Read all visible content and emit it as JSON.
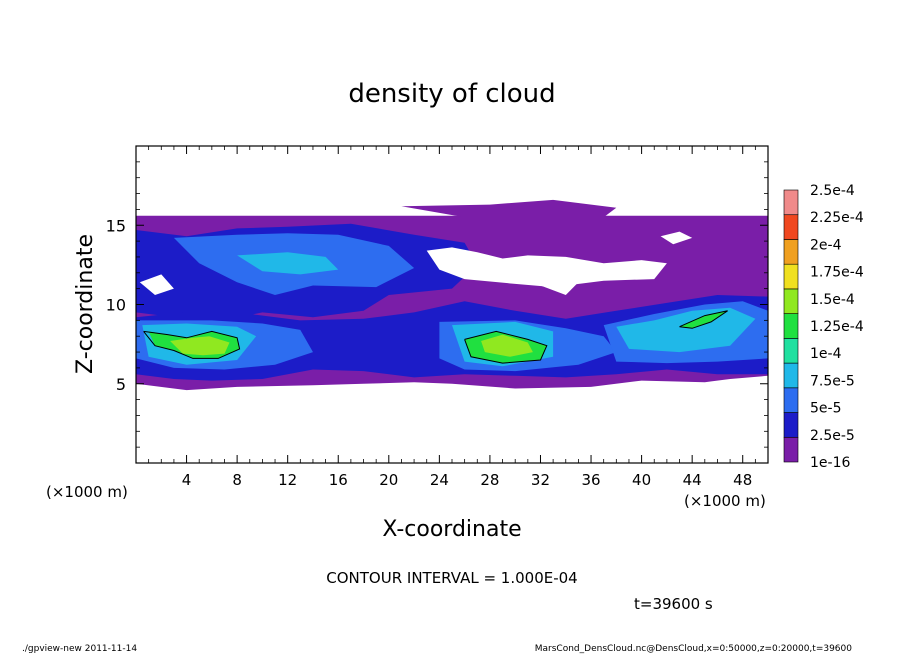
{
  "chart_data": {
    "type": "heatmap",
    "title": "density of cloud",
    "xlabel": "X-coordinate",
    "ylabel": "Z-coordinate",
    "x_unit_label": "(×1000 m)",
    "y_unit_label": "(×1000 m)",
    "xlim": [
      0,
      50
    ],
    "ylim": [
      0,
      20
    ],
    "x_ticks": [
      4,
      8,
      12,
      16,
      20,
      24,
      28,
      32,
      36,
      40,
      44,
      48
    ],
    "y_ticks": [
      5,
      10,
      15
    ],
    "colorbar": {
      "levels": [
        "1e-16",
        "2.5e-5",
        "5e-5",
        "7.5e-5",
        "1e-4",
        "1.25e-4",
        "1.5e-4",
        "1.75e-4",
        "2e-4",
        "2.25e-4",
        "2.5e-4"
      ],
      "colors": [
        "#7a1ea8",
        "#1c1cc8",
        "#2d6df0",
        "#20b8e8",
        "#20e0a0",
        "#20e040",
        "#90e820",
        "#f0e020",
        "#f0a020",
        "#f04820",
        "#f08a8a"
      ]
    },
    "contour_interval_text": "CONTOUR INTERVAL = 1.000E-04",
    "time_label": "t=39600 s",
    "grid": false,
    "regions": [
      {
        "level": 0,
        "poly": [
          [
            0,
            15.6
          ],
          [
            50,
            15.6
          ],
          [
            50,
            5.5
          ],
          [
            47,
            5.3
          ],
          [
            45,
            5.1
          ],
          [
            40,
            5.2
          ],
          [
            36,
            4.8
          ],
          [
            30,
            4.7
          ],
          [
            25,
            5.0
          ],
          [
            22,
            5.1
          ],
          [
            18,
            5.0
          ],
          [
            14,
            4.9
          ],
          [
            8,
            4.8
          ],
          [
            4,
            4.6
          ],
          [
            0,
            5.0
          ]
        ]
      },
      {
        "level": 0,
        "poly": [
          [
            21,
            16.2
          ],
          [
            28,
            16.3
          ],
          [
            33,
            16.6
          ],
          [
            38,
            16.1
          ],
          [
            37,
            15.5
          ],
          [
            26,
            15.5
          ]
        ]
      },
      {
        "level": 1,
        "poly": [
          [
            0,
            14.7
          ],
          [
            4,
            14.3
          ],
          [
            8,
            14.8
          ],
          [
            12,
            14.9
          ],
          [
            17,
            15.1
          ],
          [
            22,
            14.4
          ],
          [
            26,
            13.9
          ],
          [
            27,
            12.5
          ],
          [
            25,
            11.0
          ],
          [
            20,
            10.6
          ],
          [
            18,
            9.6
          ],
          [
            14,
            9.2
          ],
          [
            10,
            9.5
          ],
          [
            7,
            9.0
          ],
          [
            4,
            9.1
          ],
          [
            0,
            9.5
          ]
        ]
      },
      {
        "level": 1,
        "poly": [
          [
            0,
            9.2
          ],
          [
            5,
            9.6
          ],
          [
            9,
            9.4
          ],
          [
            13,
            9.0
          ],
          [
            18,
            9.1
          ],
          [
            22,
            9.5
          ],
          [
            26,
            10.2
          ],
          [
            30,
            9.6
          ],
          [
            34,
            9.1
          ],
          [
            38,
            9.6
          ],
          [
            42,
            10.1
          ],
          [
            46,
            10.6
          ],
          [
            50,
            10.5
          ],
          [
            50,
            5.6
          ],
          [
            46,
            5.6
          ],
          [
            42,
            5.9
          ],
          [
            38,
            5.6
          ],
          [
            34,
            5.4
          ],
          [
            30,
            5.5
          ],
          [
            26,
            5.6
          ],
          [
            22,
            5.4
          ],
          [
            18,
            5.8
          ],
          [
            14,
            5.9
          ],
          [
            10,
            5.3
          ],
          [
            6,
            5.2
          ],
          [
            3,
            5.3
          ],
          [
            0,
            5.6
          ]
        ]
      },
      {
        "level": 2,
        "poly": [
          [
            3,
            14.2
          ],
          [
            8,
            14.4
          ],
          [
            12,
            14.5
          ],
          [
            16,
            14.4
          ],
          [
            20,
            13.7
          ],
          [
            22,
            12.3
          ],
          [
            19,
            11.1
          ],
          [
            14,
            11.2
          ],
          [
            11,
            10.6
          ],
          [
            8,
            11.4
          ],
          [
            5,
            12.6
          ]
        ]
      },
      {
        "level": 2,
        "poly": [
          [
            0,
            9.0
          ],
          [
            6,
            9.0
          ],
          [
            10,
            8.8
          ],
          [
            13,
            8.4
          ],
          [
            14,
            7.0
          ],
          [
            11,
            6.2
          ],
          [
            7,
            5.9
          ],
          [
            3,
            6.0
          ],
          [
            0,
            6.6
          ]
        ]
      },
      {
        "level": 2,
        "poly": [
          [
            24,
            8.9
          ],
          [
            30,
            9.0
          ],
          [
            34,
            8.5
          ],
          [
            37,
            8.0
          ],
          [
            38,
            7.0
          ],
          [
            35,
            6.2
          ],
          [
            30,
            5.8
          ],
          [
            26,
            5.9
          ],
          [
            24,
            6.6
          ]
        ]
      },
      {
        "level": 2,
        "poly": [
          [
            37,
            8.7
          ],
          [
            41,
            9.4
          ],
          [
            45,
            10.0
          ],
          [
            48,
            10.2
          ],
          [
            50,
            9.6
          ],
          [
            50,
            6.6
          ],
          [
            46,
            6.4
          ],
          [
            42,
            6.3
          ],
          [
            38,
            6.4
          ]
        ]
      },
      {
        "level": 3,
        "poly": [
          [
            8,
            13.1
          ],
          [
            12,
            13.3
          ],
          [
            15,
            13.0
          ],
          [
            16,
            12.2
          ],
          [
            13,
            11.9
          ],
          [
            10,
            12.1
          ]
        ]
      },
      {
        "level": 3,
        "poly": [
          [
            0.5,
            8.7
          ],
          [
            4,
            8.8
          ],
          [
            8,
            8.6
          ],
          [
            9.5,
            8.0
          ],
          [
            8,
            6.5
          ],
          [
            4,
            6.2
          ],
          [
            1,
            6.7
          ]
        ]
      },
      {
        "level": 3,
        "poly": [
          [
            25,
            8.7
          ],
          [
            30,
            8.9
          ],
          [
            33,
            8.3
          ],
          [
            33,
            6.7
          ],
          [
            29,
            6.1
          ],
          [
            26,
            6.4
          ]
        ]
      },
      {
        "level": 3,
        "poly": [
          [
            38,
            8.6
          ],
          [
            41,
            9.0
          ],
          [
            44,
            9.6
          ],
          [
            47,
            9.8
          ],
          [
            49,
            9.1
          ],
          [
            47,
            7.4
          ],
          [
            43,
            7.0
          ],
          [
            39,
            7.2
          ]
        ]
      },
      {
        "level": 5,
        "poly": [
          [
            1,
            8.3
          ],
          [
            2.5,
            8.1
          ],
          [
            4,
            7.9
          ],
          [
            6,
            8.3
          ],
          [
            8,
            7.9
          ],
          [
            8.2,
            7.2
          ],
          [
            6.5,
            6.6
          ],
          [
            4.5,
            6.6
          ],
          [
            3,
            7.1
          ],
          [
            1.5,
            7.4
          ]
        ]
      },
      {
        "level": 6,
        "poly": [
          [
            2.7,
            7.7
          ],
          [
            4.5,
            7.9
          ],
          [
            5.8,
            8.0
          ],
          [
            7.4,
            7.6
          ],
          [
            7.0,
            6.9
          ],
          [
            5.3,
            6.8
          ],
          [
            3.7,
            6.9
          ]
        ]
      },
      {
        "level": 5,
        "poly": [
          [
            26,
            7.8
          ],
          [
            28.5,
            8.3
          ],
          [
            31,
            7.8
          ],
          [
            32.5,
            7.4
          ],
          [
            32,
            6.5
          ],
          [
            29,
            6.3
          ],
          [
            26.5,
            6.7
          ]
        ]
      },
      {
        "level": 6,
        "poly": [
          [
            27.3,
            7.7
          ],
          [
            29,
            8.1
          ],
          [
            31,
            7.6
          ],
          [
            31.4,
            7.0
          ],
          [
            29.6,
            6.7
          ],
          [
            27.6,
            7.0
          ]
        ]
      },
      {
        "level": 5,
        "poly": [
          [
            43,
            8.6
          ],
          [
            45,
            9.3
          ],
          [
            46.8,
            9.6
          ],
          [
            45.5,
            8.9
          ],
          [
            44,
            8.5
          ]
        ]
      }
    ],
    "holes": [
      {
        "poly": [
          [
            23,
            13.4
          ],
          [
            25,
            13.6
          ],
          [
            27,
            13.3
          ],
          [
            29,
            12.9
          ],
          [
            31,
            13.1
          ],
          [
            34,
            13.0
          ],
          [
            37,
            12.6
          ],
          [
            40,
            12.8
          ],
          [
            42,
            12.6
          ],
          [
            41,
            11.6
          ],
          [
            37,
            11.5
          ],
          [
            33,
            11.1
          ],
          [
            30,
            11.3
          ],
          [
            26,
            11.6
          ],
          [
            24,
            12.2
          ]
        ]
      },
      {
        "poly": [
          [
            32,
            11.2
          ],
          [
            35,
            11.4
          ],
          [
            34,
            10.6
          ]
        ]
      },
      {
        "poly": [
          [
            0.3,
            11.4
          ],
          [
            2,
            11.9
          ],
          [
            3,
            11.0
          ],
          [
            1.5,
            10.6
          ]
        ]
      },
      {
        "poly": [
          [
            41.5,
            14.3
          ],
          [
            43,
            14.6
          ],
          [
            44,
            14.2
          ],
          [
            42.5,
            13.8
          ]
        ]
      }
    ],
    "contours": [
      [
        [
          0.6,
          8.3
        ],
        [
          2.5,
          8.1
        ],
        [
          4,
          7.9
        ],
        [
          6,
          8.3
        ],
        [
          8,
          7.9
        ],
        [
          8.2,
          7.2
        ],
        [
          6.5,
          6.6
        ],
        [
          4.5,
          6.6
        ],
        [
          3,
          7.1
        ],
        [
          1.5,
          7.4
        ],
        [
          0.6,
          8.3
        ]
      ],
      [
        [
          26,
          7.8
        ],
        [
          28.5,
          8.3
        ],
        [
          31,
          7.8
        ],
        [
          32.5,
          7.4
        ],
        [
          32,
          6.5
        ],
        [
          29,
          6.3
        ],
        [
          26.5,
          6.7
        ],
        [
          26,
          7.8
        ]
      ],
      [
        [
          43,
          8.6
        ],
        [
          45,
          9.3
        ],
        [
          46.8,
          9.6
        ],
        [
          45.5,
          8.9
        ],
        [
          44,
          8.5
        ],
        [
          43,
          8.6
        ]
      ]
    ]
  },
  "footer": {
    "left": "./gpview-new   2011-11-14",
    "right": "MarsCond_DensCloud.nc@DensCloud,x=0:50000,z=0:20000,t=39600"
  }
}
